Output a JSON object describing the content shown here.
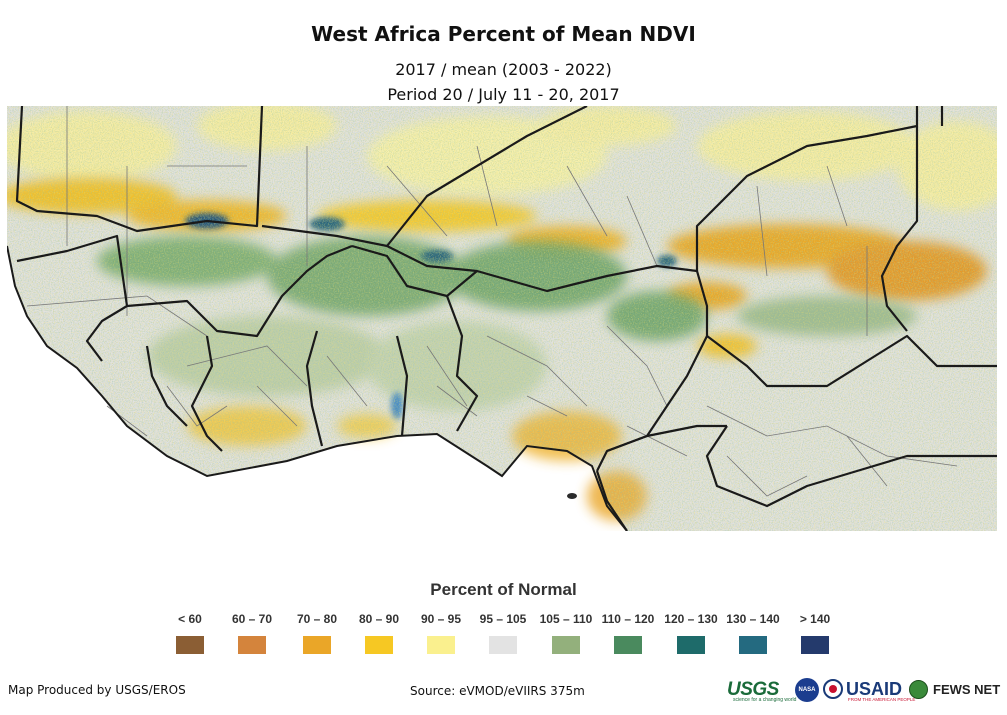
{
  "title": "West Africa Percent of Mean NDVI",
  "subtitle_line1": "2017 / mean (2003 - 2022)",
  "subtitle_line2": "Period 20 / July 11 - 20, 2017",
  "legend": {
    "title": "Percent of Normal",
    "items": [
      {
        "label": "< 60",
        "color": "#8b5e34"
      },
      {
        "label": "60 – 70",
        "color": "#d4843c"
      },
      {
        "label": "70 – 80",
        "color": "#eaa628"
      },
      {
        "label": "80 – 90",
        "color": "#f6c823"
      },
      {
        "label": "90 – 95",
        "color": "#faf08e"
      },
      {
        "label": "95 – 105",
        "color": "#e3e3e3"
      },
      {
        "label": "105 – 110",
        "color": "#93b07c"
      },
      {
        "label": "110 – 120",
        "color": "#4a8a5e"
      },
      {
        "label": "120 – 130",
        "color": "#1e6b6a"
      },
      {
        "label": "130 – 140",
        "color": "#246a80"
      },
      {
        "label": "> 140",
        "color": "#243a6c"
      }
    ]
  },
  "footer": {
    "credit": "Map Produced by USGS/EROS",
    "source": "Source: eVMOD/eVIIRS 375m"
  },
  "logos": {
    "usgs": "USGS",
    "usgs_tagline": "science for a changing world",
    "nasa": "NASA",
    "usaid": "USAID",
    "usaid_tagline": "FROM THE AMERICAN PEOPLE",
    "fews": "FEWS NET"
  }
}
